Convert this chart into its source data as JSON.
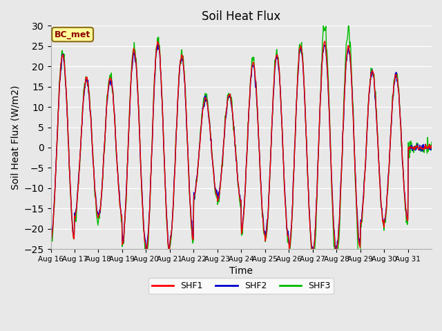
{
  "title": "Soil Heat Flux",
  "xlabel": "Time",
  "ylabel": "Soil Heat Flux (W/m2)",
  "ylim": [
    -25,
    30
  ],
  "yticks": [
    -25,
    -20,
    -15,
    -10,
    -5,
    0,
    5,
    10,
    15,
    20,
    25,
    30
  ],
  "xtick_labels": [
    "Aug 16",
    "Aug 17",
    "Aug 18",
    "Aug 19",
    "Aug 20",
    "Aug 21",
    "Aug 22",
    "Aug 23",
    "Aug 24",
    "Aug 25",
    "Aug 26",
    "Aug 27",
    "Aug 28",
    "Aug 29",
    "Aug 30",
    "Aug 31"
  ],
  "annotation_text": "BC_met",
  "annotation_color": "#8B0000",
  "annotation_bg": "#FFFF99",
  "annotation_border": "#8B6914",
  "shf1_color": "#FF0000",
  "shf2_color": "#0000CC",
  "shf3_color": "#00BB00",
  "legend_labels": [
    "SHF1",
    "SHF2",
    "SHF3"
  ],
  "bg_color": "#E8E8E8",
  "n_days": 16,
  "pts_per_day": 48
}
